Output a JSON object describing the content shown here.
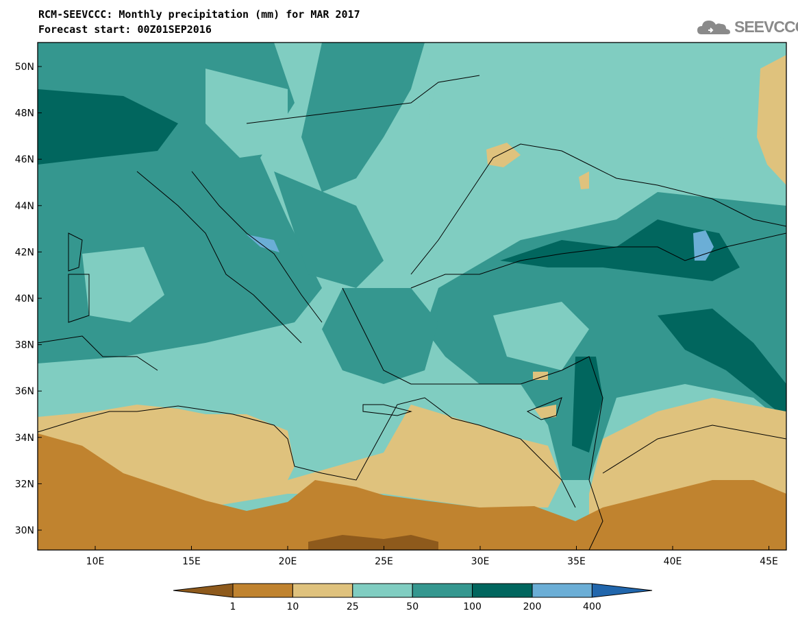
{
  "header": {
    "title": "RCM-SEEVCCC: Monthly precipitation (mm) for MAR 2017",
    "subtitle": "Forecast start: 00Z01SEP2016"
  },
  "logo": {
    "text": "SEEVCCC",
    "icon": "cloud-icon"
  },
  "map": {
    "lat_labels": [
      "50N",
      "48N",
      "46N",
      "44N",
      "42N",
      "40N",
      "38N",
      "36N",
      "34N",
      "32N",
      "30N"
    ],
    "lon_labels": [
      "10E",
      "15E",
      "20E",
      "25E",
      "30E",
      "35E",
      "40E",
      "45E"
    ],
    "lat_range": [
      29,
      51
    ],
    "lon_range": [
      7,
      46
    ]
  },
  "legend": {
    "colors": [
      "#8e5a1c",
      "#c0832f",
      "#dfc27d",
      "#80cdc1",
      "#35978f",
      "#01665e",
      "#6baed6",
      "#2166ac"
    ],
    "ticks": [
      "1",
      "10",
      "25",
      "50",
      "100",
      "200",
      "400"
    ]
  }
}
